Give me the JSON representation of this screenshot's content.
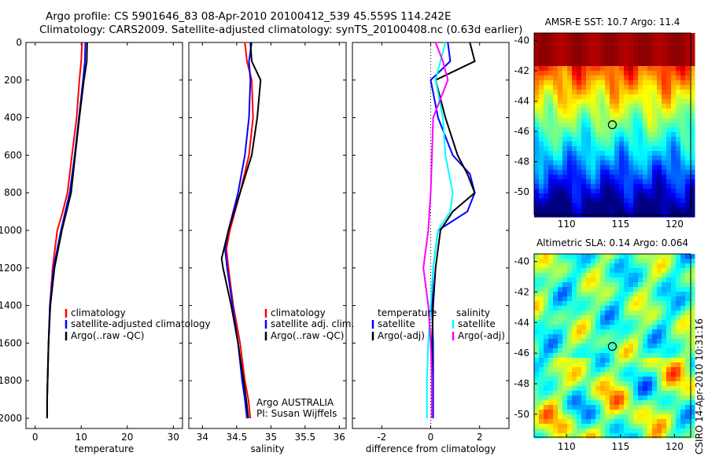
{
  "header": {
    "line1": "Argo profile: CS 5901646_83 08-Apr-2010 20100412_539 45.559S 114.242E",
    "line2": "Climatology: CARS2009. Satellite-adjusted climatology: synTS_20100408.nc (0.63d earlier)"
  },
  "side_label": "CSIRO 14-Apr-2010 10:31:16",
  "colors": {
    "red": "#ff0000",
    "blue": "#0000ff",
    "black": "#000000",
    "cyan": "#00ffff",
    "magenta": "#ff00ff"
  },
  "chart_data": [
    {
      "type": "line",
      "xlabel": "temperature",
      "ylabel": "",
      "xlim": [
        -2,
        32
      ],
      "ylim": [
        2050,
        0
      ],
      "xticks": [
        0,
        10,
        20,
        30
      ],
      "yticks": [
        0,
        200,
        400,
        600,
        800,
        1000,
        1200,
        1400,
        1600,
        1800,
        2000
      ],
      "legend": [
        "climatology",
        "satellite-adjusted climatology",
        "Argo(..raw -QC)"
      ],
      "series": [
        {
          "name": "climatology",
          "color": "red",
          "x": [
            10.2,
            10.0,
            9.6,
            9.0,
            8.0,
            7.0,
            6.0,
            4.8,
            3.8,
            3.2,
            2.9,
            2.7,
            2.6,
            2.6
          ],
          "y": [
            0,
            100,
            200,
            400,
            600,
            800,
            900,
            1000,
            1200,
            1400,
            1600,
            1800,
            1900,
            2000
          ]
        },
        {
          "name": "satellite-adjusted climatology",
          "color": "blue",
          "x": [
            10.9,
            10.8,
            10.4,
            9.5,
            8.6,
            7.5,
            5.6,
            4.0,
            3.2,
            2.9,
            2.7,
            2.6,
            2.6
          ],
          "y": [
            0,
            100,
            200,
            400,
            600,
            800,
            1000,
            1200,
            1400,
            1600,
            1800,
            1900,
            2000
          ]
        },
        {
          "name": "Argo(..raw -QC)",
          "color": "black",
          "x": [
            11.3,
            11.2,
            10.6,
            9.6,
            8.7,
            7.8,
            5.8,
            4.2,
            3.3,
            2.9,
            2.7,
            2.6,
            2.6
          ],
          "y": [
            0,
            100,
            200,
            400,
            600,
            800,
            1000,
            1200,
            1400,
            1600,
            1800,
            1900,
            2000
          ]
        }
      ]
    },
    {
      "type": "line",
      "xlabel": "salinity",
      "xlim": [
        33.8,
        36.1
      ],
      "ylim": [
        2050,
        0
      ],
      "xticks": [
        34,
        34.5,
        35,
        35.5,
        36
      ],
      "yticks": [
        0,
        200,
        400,
        600,
        800,
        1000,
        1200,
        1400,
        1600,
        1800,
        2000
      ],
      "legend": [
        "climatology",
        "satellite adj. clim.",
        "Argo(..raw -QC)"
      ],
      "annotations": [
        "Argo AUSTRALIA",
        "PI: Susan Wijffels"
      ],
      "series": [
        {
          "name": "climatology",
          "color": "red",
          "x": [
            34.62,
            34.65,
            34.72,
            34.74,
            34.68,
            34.55,
            34.4,
            34.35,
            34.38,
            34.45,
            34.55,
            34.62,
            34.67,
            34.7
          ],
          "y": [
            0,
            100,
            200,
            400,
            600,
            800,
            1000,
            1100,
            1200,
            1400,
            1600,
            1800,
            1900,
            2000
          ]
        },
        {
          "name": "satellite adj. clim.",
          "color": "blue",
          "x": [
            34.72,
            34.68,
            34.7,
            34.68,
            34.62,
            34.52,
            34.38,
            34.33,
            34.36,
            34.44,
            34.52,
            34.58,
            34.62,
            34.65
          ],
          "y": [
            0,
            100,
            200,
            400,
            600,
            800,
            1000,
            1100,
            1200,
            1400,
            1600,
            1800,
            1900,
            2000
          ]
        },
        {
          "name": "Argo(..raw -QC)",
          "color": "black",
          "x": [
            34.7,
            34.72,
            34.85,
            34.8,
            34.72,
            34.55,
            34.38,
            34.28,
            34.3,
            34.42,
            34.52,
            34.6,
            34.64,
            34.67
          ],
          "y": [
            0,
            100,
            200,
            400,
            600,
            800,
            1000,
            1150,
            1200,
            1400,
            1600,
            1800,
            1900,
            2000
          ]
        }
      ]
    },
    {
      "type": "line",
      "xlabel": "difference from climatology",
      "xlim": [
        -3.2,
        3.2
      ],
      "ylim": [
        2050,
        0
      ],
      "xticks": [
        -2,
        0,
        2
      ],
      "yticks": [
        0,
        200,
        400,
        600,
        800,
        1000,
        1200,
        1400,
        1600,
        1800,
        2000
      ],
      "legend_titles": [
        "temperature",
        "salinity"
      ],
      "legend": [
        "satellite",
        "Argo(-adj)",
        "satellite",
        "Argo(-adj)"
      ],
      "series": [
        {
          "name": "temperature satellite",
          "color": "blue",
          "x": [
            0.7,
            0.8,
            0.0,
            0.3,
            0.9,
            1.6,
            1.8,
            1.5,
            0.3,
            0.1,
            0.05,
            0.1,
            0.1
          ],
          "y": [
            0,
            100,
            200,
            400,
            600,
            700,
            800,
            900,
            1000,
            1200,
            1400,
            1600,
            2000
          ]
        },
        {
          "name": "temperature Argo(-adj)",
          "color": "black",
          "x": [
            1.6,
            1.8,
            0.2,
            0.6,
            1.1,
            1.5,
            1.8,
            0.9,
            0.4,
            0.2,
            0.1,
            0.05,
            0.05
          ],
          "y": [
            0,
            100,
            200,
            400,
            600,
            700,
            800,
            900,
            1000,
            1200,
            1400,
            1600,
            2000
          ]
        },
        {
          "name": "salinity satellite",
          "color": "cyan",
          "x": [
            0.6,
            0.4,
            0.2,
            0.5,
            0.6,
            0.9,
            0.8,
            0.3,
            0.1,
            0.0,
            -0.1,
            -0.15,
            -0.15
          ],
          "y": [
            0,
            100,
            200,
            400,
            600,
            800,
            900,
            1000,
            1200,
            1400,
            1600,
            1800,
            2000
          ]
        },
        {
          "name": "salinity Argo(-adj)",
          "color": "magenta",
          "x": [
            0.2,
            0.5,
            0.7,
            0.1,
            0.05,
            0.0,
            -0.05,
            -0.1,
            -0.3,
            -0.1,
            0.0,
            0.05,
            0.05
          ],
          "y": [
            0,
            100,
            200,
            400,
            600,
            800,
            900,
            1000,
            1200,
            1400,
            1600,
            1800,
            2000
          ]
        }
      ]
    },
    {
      "type": "heatmap",
      "title": "AMSR-E SST: 10.7 Argo: 11.4",
      "xlim": [
        107,
        121.5
      ],
      "ylim": [
        -51.5,
        -39.5
      ],
      "xticks": [
        110,
        115,
        120
      ],
      "yticks": [
        -40,
        -42,
        -44,
        -46,
        -48,
        -50
      ],
      "marker": {
        "lon": 114.242,
        "lat": -45.559
      }
    },
    {
      "type": "heatmap",
      "title": "Altimetric SLA: 0.14 Argo: 0.064",
      "xlim": [
        107,
        121.5
      ],
      "ylim": [
        -51.5,
        -39.5
      ],
      "xticks": [
        110,
        115,
        120
      ],
      "yticks": [
        -40,
        -42,
        -44,
        -46,
        -48,
        -50
      ],
      "marker": {
        "lon": 114.242,
        "lat": -45.559
      }
    }
  ]
}
